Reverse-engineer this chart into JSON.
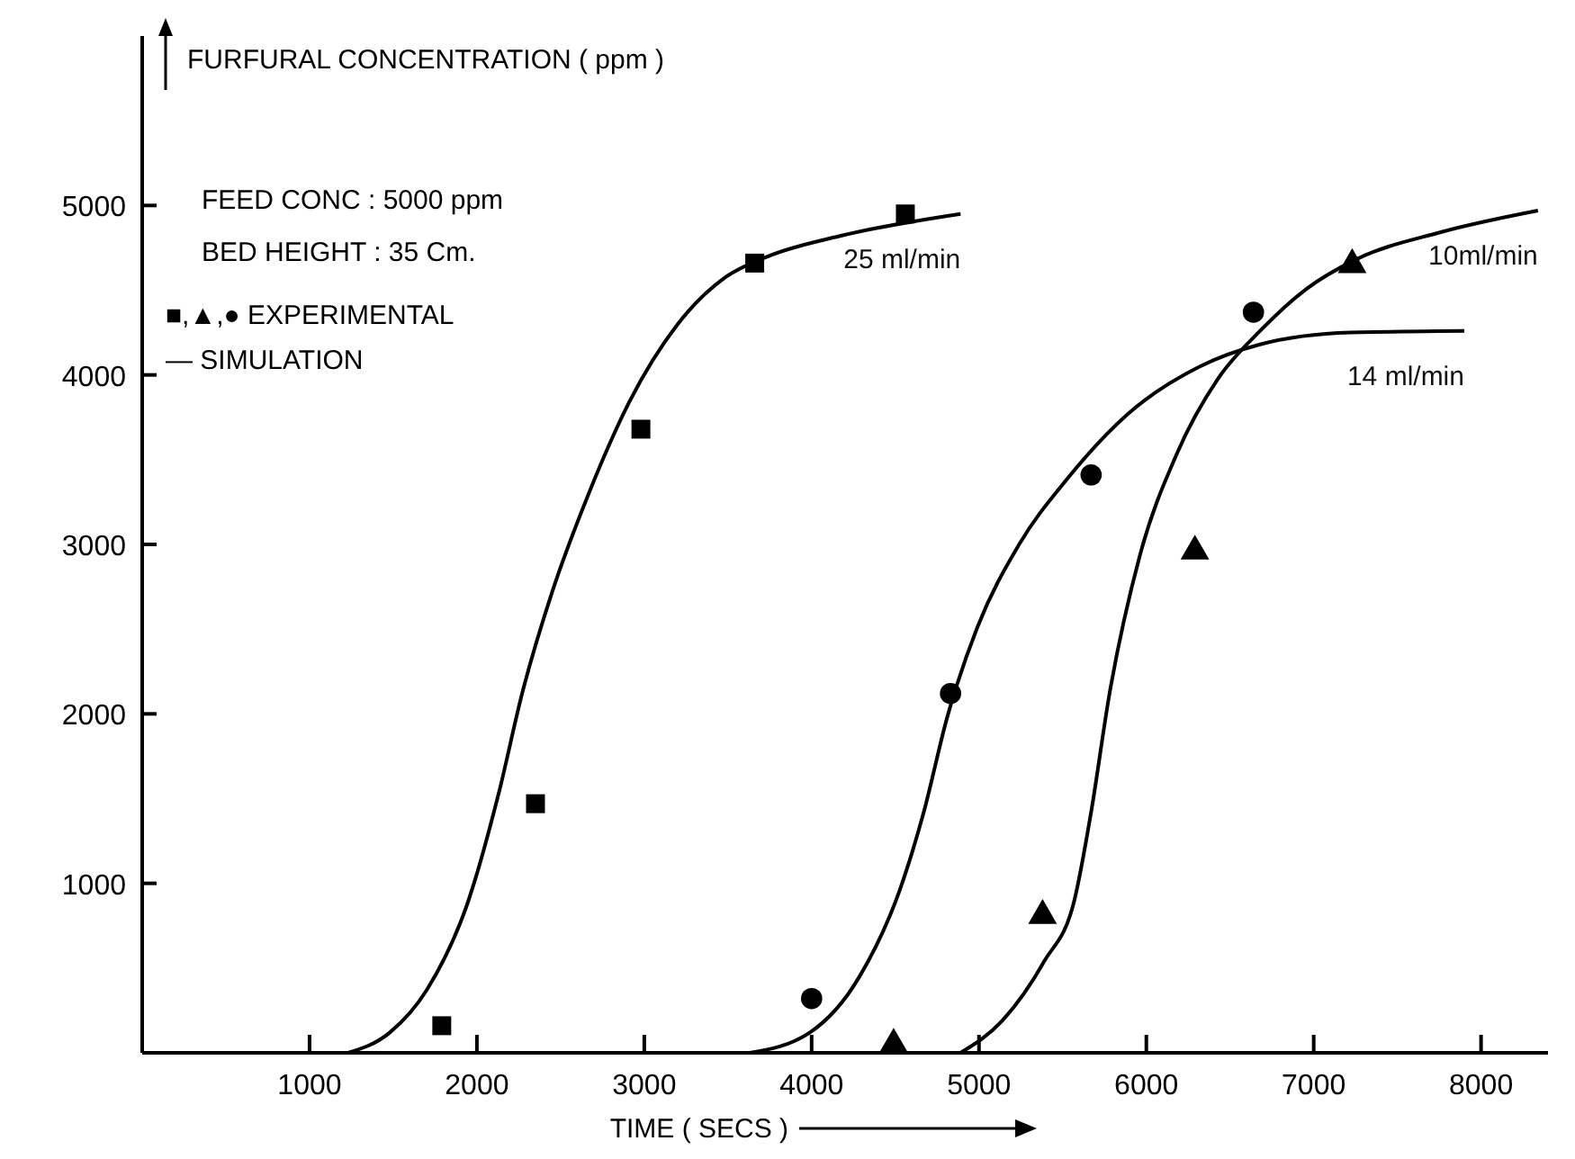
{
  "chart_data": {
    "type": "line",
    "ylabel": "FURFURAL CONCENTRATION ( ppm )",
    "xlabel": "TIME ( SECS )",
    "xlim": [
      0,
      8400
    ],
    "xticks": [
      1000,
      2000,
      3000,
      4000,
      5000,
      6000,
      7000,
      8000
    ],
    "ylim": [
      0,
      6000
    ],
    "yticks": [
      1000,
      2000,
      3000,
      4000,
      5000
    ],
    "annotations": [
      "FEED CONC : 5000 ppm",
      "BED HEIGHT : 35 Cm.",
      "■,▲,● EXPERIMENTAL",
      "—  SIMULATION"
    ],
    "series": [
      {
        "name": "25 ml/min",
        "color": "#000000",
        "x": [
          1230,
          1480,
          1700,
          1950,
          2130,
          2270,
          2450,
          2660,
          2910,
          3200,
          3490,
          3740,
          4170,
          4890
        ],
        "values": [
          0,
          120,
          370,
          900,
          1530,
          2120,
          2720,
          3280,
          3840,
          4300,
          4580,
          4700,
          4820,
          4950
        ]
      },
      {
        "name": "14 ml/min",
        "color": "#000000",
        "x": [
          3630,
          3990,
          4280,
          4530,
          4670,
          4810,
          4990,
          5240,
          5530,
          5890,
          6320,
          6680,
          7220,
          7900
        ],
        "values": [
          0,
          120,
          440,
          970,
          1420,
          1980,
          2510,
          3000,
          3390,
          3770,
          4050,
          4180,
          4250,
          4260
        ]
      },
      {
        "name": "10ml/min",
        "color": "#000000",
        "x": [
          4890,
          5140,
          5390,
          5570,
          5670,
          5780,
          5960,
          6180,
          6430,
          6680,
          6960,
          7250,
          7750,
          8340
        ],
        "values": [
          0,
          190,
          540,
          900,
          1420,
          2120,
          2930,
          3530,
          3980,
          4260,
          4510,
          4680,
          4840,
          4970
        ]
      },
      {
        "type": "scatter",
        "marker": "square",
        "color": "#000000",
        "x": [
          1790,
          2350,
          2980,
          3660,
          4560
        ],
        "values": [
          160,
          1470,
          3680,
          4660,
          4950
        ]
      },
      {
        "type": "scatter",
        "marker": "circle",
        "color": "#000000",
        "x": [
          4000,
          4830,
          5670,
          6640
        ],
        "values": [
          320,
          2120,
          3410,
          4370
        ]
      },
      {
        "type": "scatter",
        "marker": "triangle",
        "color": "#000000",
        "x": [
          4490,
          5380,
          6290,
          7230
        ],
        "values": [
          50,
          810,
          2960,
          4650
        ]
      }
    ]
  }
}
